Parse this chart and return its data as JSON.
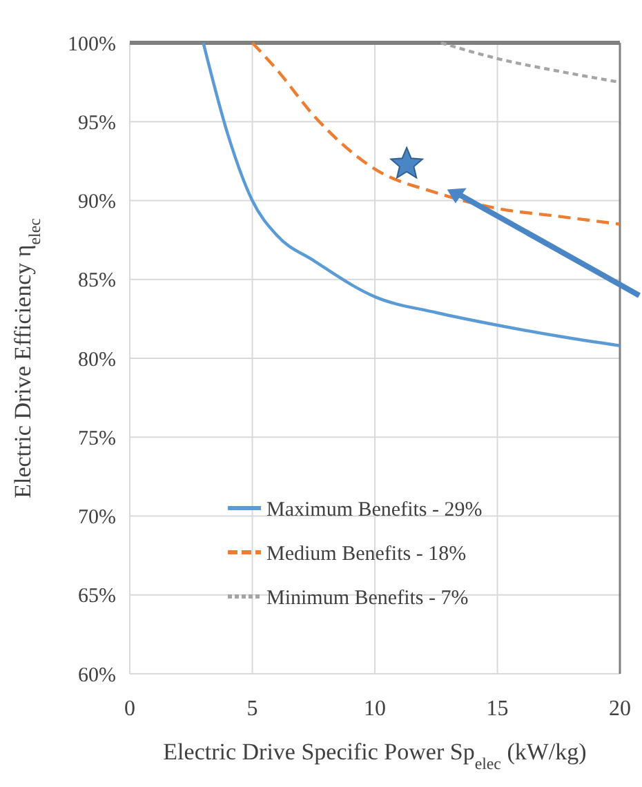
{
  "chart_data": {
    "type": "line",
    "xlabel": "Electric Drive Specific Power Sp$_{elec}$ (kW/kg)",
    "ylabel": "Electric Drive Efficiency η$_{elec}$",
    "xlim": [
      0,
      20
    ],
    "xticks": [
      0,
      5,
      10,
      15,
      20
    ],
    "ylim": [
      60,
      100
    ],
    "yticks": [
      {
        "value": 60,
        "label": "60%"
      },
      {
        "value": 65,
        "label": "65%"
      },
      {
        "value": 70,
        "label": "70%"
      },
      {
        "value": 75,
        "label": "75%"
      },
      {
        "value": 80,
        "label": "80%"
      },
      {
        "value": 85,
        "label": "85%"
      },
      {
        "value": 90,
        "label": "90%"
      },
      {
        "value": 95,
        "label": "95%"
      },
      {
        "value": 100,
        "label": "100%"
      }
    ],
    "grid": true,
    "legend": "bottom",
    "series": [
      {
        "name": "Maximum Benefits - 29%",
        "color": "#5b9bd5",
        "line_style": "solid",
        "x": [
          3,
          4,
          5,
          6,
          7.5,
          10,
          12.5,
          15,
          17.5,
          20
        ],
        "values": [
          100,
          94.2,
          90,
          87.8,
          86.2,
          83.9,
          82.9,
          82.1,
          81.4,
          80.8
        ]
      },
      {
        "name": "Medium Benefits - 18%",
        "color": "#ed7d31",
        "line_style": "dashed",
        "x": [
          5,
          6,
          7.5,
          10,
          12.5,
          15,
          17.5,
          20
        ],
        "values": [
          100,
          98.3,
          95.4,
          92,
          90.5,
          89.5,
          89,
          88.5
        ]
      },
      {
        "name": "Minimum Benefits - 7%",
        "color": "#a5a5a5",
        "line_style": "dotted",
        "x": [
          12.7,
          15,
          17.5,
          20
        ],
        "values": [
          100,
          99,
          98.2,
          97.5
        ]
      },
      {
        "type": "scatter",
        "marker": "star",
        "color": "#4a86c5",
        "x": [
          11.3
        ],
        "values": [
          92.3
        ]
      }
    ]
  }
}
